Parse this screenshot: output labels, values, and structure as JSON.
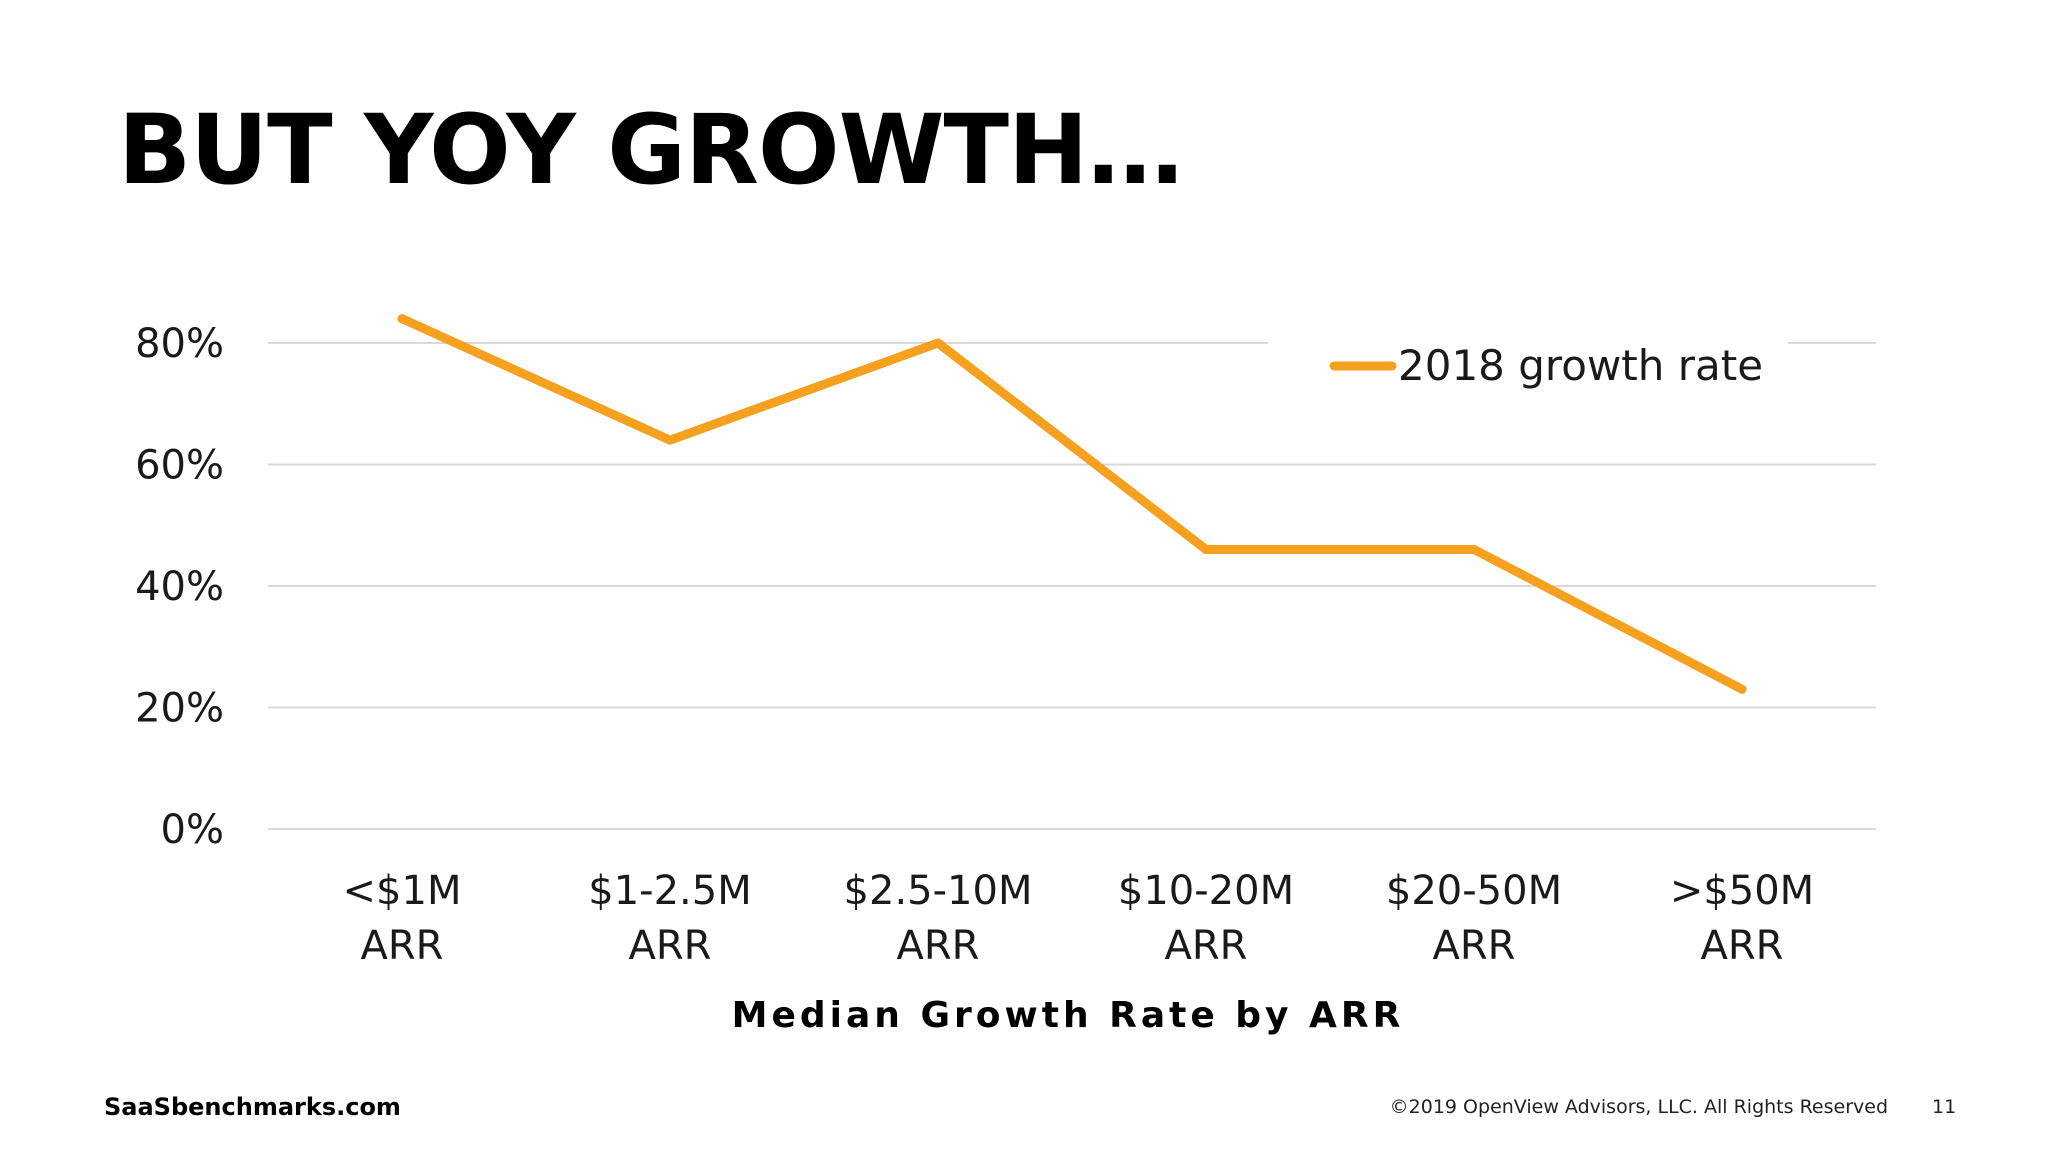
{
  "slide": {
    "title": "BUT YOY GROWTH…",
    "footer_left": "SaaSbenchmarks.com",
    "footer_right": "©2019 OpenView Advisors, LLC. All Rights Reserved",
    "page_number": "11"
  },
  "colors": {
    "series": "#F5A11F",
    "grid": "#D9D9D9",
    "text": "#1A1A1A"
  },
  "chart_data": {
    "type": "line",
    "title": "",
    "xlabel": "Median Growth Rate by ARR",
    "ylabel": "",
    "categories": [
      [
        "<$1M",
        "ARR"
      ],
      [
        "$1-2.5M",
        "ARR"
      ],
      [
        "$2.5-10M",
        "ARR"
      ],
      [
        "$10-20M",
        "ARR"
      ],
      [
        "$20-50M",
        "ARR"
      ],
      [
        ">$50M",
        "ARR"
      ]
    ],
    "series": [
      {
        "name": "2018 growth rate",
        "values": [
          84,
          64,
          80,
          46,
          46,
          23
        ]
      }
    ],
    "ylim": [
      0,
      80
    ],
    "yticks": [
      "0%",
      "20%",
      "40%",
      "60%",
      "80%"
    ],
    "ytick_values": [
      0,
      20,
      40,
      60,
      80
    ],
    "grid": true,
    "legend": "top-right"
  }
}
